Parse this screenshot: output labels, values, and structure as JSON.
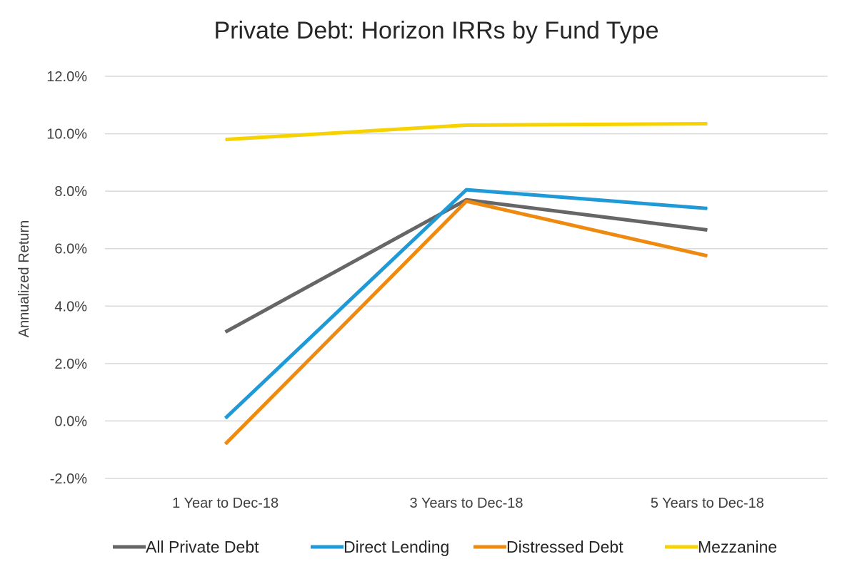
{
  "chart_data": {
    "type": "line",
    "title": "Private Debt: Horizon IRRs by Fund Type",
    "xlabel": "",
    "ylabel": "Annualized Return",
    "categories": [
      "1 Year to Dec-18",
      "3 Years to Dec-18",
      "5 Years to Dec-18"
    ],
    "ylim": [
      -2.0,
      12.0
    ],
    "yticks": [
      -2.0,
      0.0,
      2.0,
      4.0,
      6.0,
      8.0,
      10.0,
      12.0
    ],
    "ytick_labels": [
      "-2.0%",
      "0.0%",
      "2.0%",
      "4.0%",
      "6.0%",
      "8.0%",
      "10.0%",
      "12.0%"
    ],
    "grid": true,
    "legend_position": "bottom",
    "series": [
      {
        "name": "All Private Debt",
        "color": "#666666",
        "values": [
          3.1,
          7.7,
          6.65
        ]
      },
      {
        "name": "Direct Lending",
        "color": "#1f9ad6",
        "values": [
          0.1,
          8.05,
          7.4
        ]
      },
      {
        "name": "Distressed Debt",
        "color": "#ed8a0f",
        "values": [
          -0.8,
          7.65,
          5.75
        ]
      },
      {
        "name": "Mezzanine",
        "color": "#f5d200",
        "values": [
          9.8,
          10.3,
          10.35
        ]
      }
    ]
  }
}
